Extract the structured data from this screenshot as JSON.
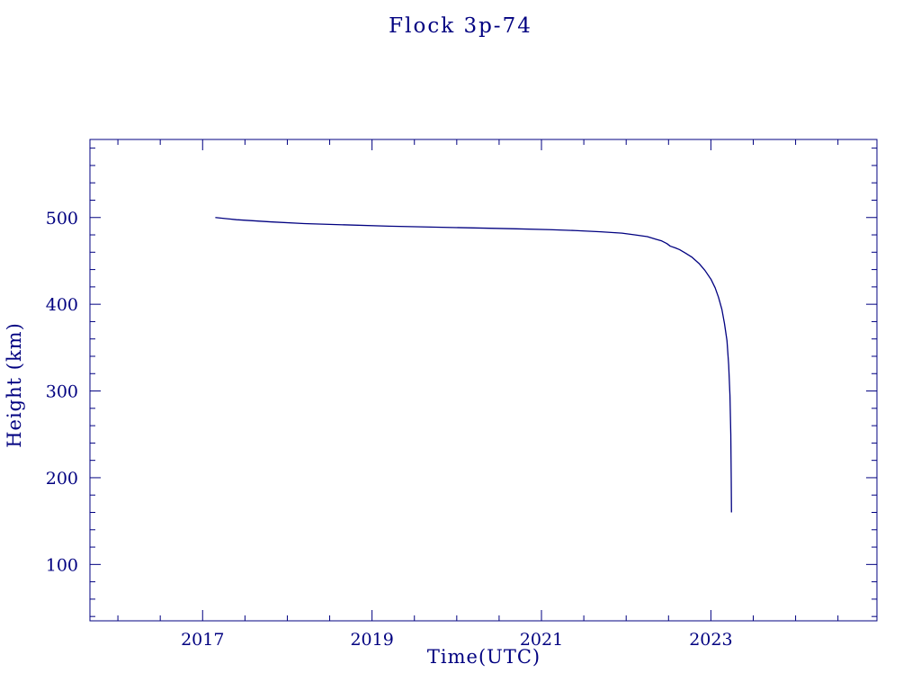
{
  "title": "Flock 3p-74",
  "colors": {
    "line": "#000080",
    "frame": "#000080",
    "text": "#000080",
    "background": "#ffffff"
  },
  "chart_data": {
    "type": "line",
    "title": "Flock 3p-74",
    "xlabel": "Time(UTC)",
    "ylabel": "Height (km)",
    "xlim": [
      2015.67,
      2024.96
    ],
    "ylim": [
      35,
      590
    ],
    "x_major_ticks": [
      2017,
      2019,
      2021,
      2023
    ],
    "x_minor_step": 0.5,
    "y_major_ticks": [
      100,
      200,
      300,
      400,
      500
    ],
    "y_minor_step": 20,
    "grid": false,
    "legend": "none",
    "series": [
      {
        "name": "orbital-height",
        "points": [
          [
            2017.15,
            500
          ],
          [
            2017.4,
            497.5
          ],
          [
            2017.8,
            495
          ],
          [
            2018.2,
            493
          ],
          [
            2018.7,
            491.5
          ],
          [
            2019.2,
            490
          ],
          [
            2019.7,
            489
          ],
          [
            2020.2,
            488
          ],
          [
            2020.7,
            487
          ],
          [
            2021.1,
            486
          ],
          [
            2021.4,
            485
          ],
          [
            2021.7,
            483.5
          ],
          [
            2021.95,
            482
          ],
          [
            2022.1,
            480
          ],
          [
            2022.25,
            478
          ],
          [
            2022.35,
            475
          ],
          [
            2022.42,
            473
          ],
          [
            2022.48,
            470
          ],
          [
            2022.52,
            467
          ],
          [
            2022.58,
            465
          ],
          [
            2022.63,
            463
          ],
          [
            2022.7,
            459
          ],
          [
            2022.78,
            454
          ],
          [
            2022.86,
            447
          ],
          [
            2022.93,
            439
          ],
          [
            2023.0,
            429
          ],
          [
            2023.05,
            419
          ],
          [
            2023.09,
            408
          ],
          [
            2023.13,
            394
          ],
          [
            2023.16,
            378
          ],
          [
            2023.19,
            358
          ],
          [
            2023.21,
            330
          ],
          [
            2023.225,
            295
          ],
          [
            2023.235,
            250
          ],
          [
            2023.24,
            200
          ],
          [
            2023.243,
            160
          ]
        ]
      }
    ]
  }
}
